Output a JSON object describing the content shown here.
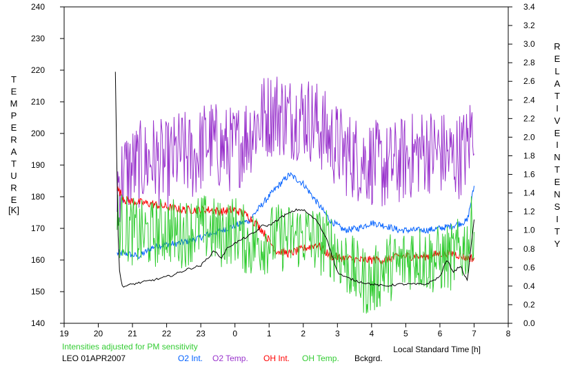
{
  "chart_data": {
    "type": "line",
    "title": "",
    "xlabel": "Local Standard Time [h]",
    "ylabel_left": "TEMPERATURE",
    "ylabel_left_unit": "[K]",
    "ylabel_right": "RELATIVE INTENSITY",
    "note": "Intensities adjusted for PM sensitivity",
    "station_date": "LEO 01APR2007",
    "x_ticks": [
      "19",
      "20",
      "21",
      "22",
      "23",
      "0",
      "1",
      "2",
      "3",
      "4",
      "5",
      "6",
      "7",
      "8"
    ],
    "x_range_hours_since_19": [
      0,
      13
    ],
    "y_left": {
      "min": 140,
      "max": 240,
      "ticks": [
        140,
        150,
        160,
        170,
        180,
        190,
        200,
        210,
        220,
        230,
        240
      ]
    },
    "y_right": {
      "min": 0.0,
      "max": 3.4,
      "ticks": [
        "0.0",
        "0.2",
        "0.4",
        "0.6",
        "0.8",
        "1.0",
        "1.2",
        "1.4",
        "1.6",
        "1.8",
        "2.0",
        "2.2",
        "2.4",
        "2.6",
        "2.8",
        "3.0",
        "3.2",
        "3.4"
      ]
    },
    "grid": false,
    "legend_position": "bottom",
    "series": [
      {
        "name": "O2 Int.",
        "axis": "right",
        "color": "#0060ff",
        "x": [
          1.55,
          1.8,
          2.2,
          2.6,
          3.0,
          3.4,
          3.8,
          4.2,
          4.6,
          5.0,
          5.4,
          5.8,
          6.2,
          6.6,
          7.0,
          7.4,
          7.8,
          8.2,
          8.6,
          9.0,
          9.4,
          9.8,
          10.2,
          10.6,
          11.0,
          11.4,
          11.8,
          12.0
        ],
        "values": [
          0.75,
          0.75,
          0.72,
          0.82,
          0.85,
          0.86,
          0.9,
          0.95,
          1.0,
          1.05,
          1.1,
          1.28,
          1.45,
          1.6,
          1.5,
          1.3,
          1.1,
          1.0,
          1.02,
          1.08,
          1.05,
          1.0,
          1.0,
          1.0,
          1.02,
          1.05,
          1.1,
          1.47
        ]
      },
      {
        "name": "O2 Temp.",
        "axis": "left",
        "color": "#9933cc",
        "x": [
          1.55,
          1.8,
          2.2,
          2.6,
          3.0,
          3.4,
          3.8,
          4.2,
          4.6,
          5.0,
          5.4,
          5.8,
          6.2,
          6.6,
          7.0,
          7.4,
          7.8,
          8.2,
          8.6,
          9.0,
          9.4,
          9.8,
          10.2,
          10.6,
          11.0,
          11.4,
          11.8,
          12.0
        ],
        "values": [
          184,
          188,
          190,
          192,
          190,
          194,
          192,
          198,
          195,
          195,
          200,
          205,
          207,
          205,
          206,
          203,
          198,
          194,
          192,
          191,
          189,
          191,
          193,
          195,
          194,
          192,
          195,
          205
        ]
      },
      {
        "name": "OH Int.",
        "axis": "right",
        "color": "#ff0000",
        "x": [
          1.55,
          1.8,
          2.2,
          2.6,
          3.0,
          3.4,
          3.8,
          4.2,
          4.6,
          5.0,
          5.4,
          5.8,
          6.2,
          6.6,
          7.0,
          7.4,
          7.8,
          8.2,
          8.6,
          9.0,
          9.4,
          9.8,
          10.2,
          10.6,
          11.0,
          11.4,
          11.8,
          12.0
        ],
        "values": [
          1.45,
          1.32,
          1.3,
          1.28,
          1.25,
          1.22,
          1.22,
          1.22,
          1.2,
          1.22,
          1.15,
          1.0,
          0.78,
          0.75,
          0.8,
          0.85,
          0.72,
          0.7,
          0.68,
          0.68,
          0.68,
          0.72,
          0.72,
          0.72,
          0.75,
          0.75,
          0.7,
          0.7
        ]
      },
      {
        "name": "OH Temp.",
        "axis": "left",
        "color": "#33cc33",
        "x": [
          1.55,
          1.8,
          2.2,
          2.6,
          3.0,
          3.4,
          3.8,
          4.2,
          4.6,
          5.0,
          5.4,
          5.8,
          6.2,
          6.6,
          7.0,
          7.4,
          7.8,
          8.2,
          8.6,
          9.0,
          9.4,
          9.8,
          10.2,
          10.6,
          11.0,
          11.4,
          11.8,
          12.0
        ],
        "values": [
          172,
          170,
          168,
          168,
          170,
          168,
          170,
          170,
          168,
          170,
          165,
          166,
          167,
          167,
          168,
          166,
          165,
          160,
          155,
          152,
          158,
          158,
          162,
          160,
          160,
          161,
          165,
          172
        ]
      },
      {
        "name": "Bckgrd.",
        "axis": "right",
        "color": "#000000",
        "x": [
          1.5,
          1.52,
          1.55,
          1.6,
          1.7,
          1.8,
          2.0,
          2.4,
          2.8,
          3.2,
          3.6,
          4.0,
          4.4,
          4.6,
          4.8,
          5.2,
          5.6,
          5.8,
          6.0,
          6.4,
          6.8,
          7.0,
          7.4,
          7.7,
          8.0,
          8.2,
          8.6,
          9.0,
          9.4,
          9.8,
          10.2,
          10.6,
          11.0,
          11.2,
          11.4,
          11.6,
          11.8,
          12.0
        ],
        "values": [
          2.7,
          2.3,
          1.5,
          0.6,
          0.4,
          0.4,
          0.42,
          0.45,
          0.48,
          0.52,
          0.58,
          0.62,
          0.78,
          0.7,
          0.82,
          0.9,
          0.98,
          1.05,
          1.05,
          1.15,
          1.22,
          1.22,
          1.1,
          0.9,
          0.55,
          0.5,
          0.45,
          0.42,
          0.4,
          0.42,
          0.42,
          0.42,
          0.5,
          0.68,
          0.55,
          0.62,
          0.45,
          1.12
        ]
      }
    ]
  },
  "legend": {
    "items": [
      {
        "label": "O2 Int.",
        "color": "#0060ff"
      },
      {
        "label": "O2 Temp.",
        "color": "#9933cc"
      },
      {
        "label": "OH Int.",
        "color": "#ff0000"
      },
      {
        "label": "OH Temp.",
        "color": "#33cc33"
      },
      {
        "label": "Bckgrd.",
        "color": "#000000"
      }
    ]
  },
  "colors": {
    "note": "#33cc33",
    "axis": "#000000",
    "background": "#ffffff"
  }
}
